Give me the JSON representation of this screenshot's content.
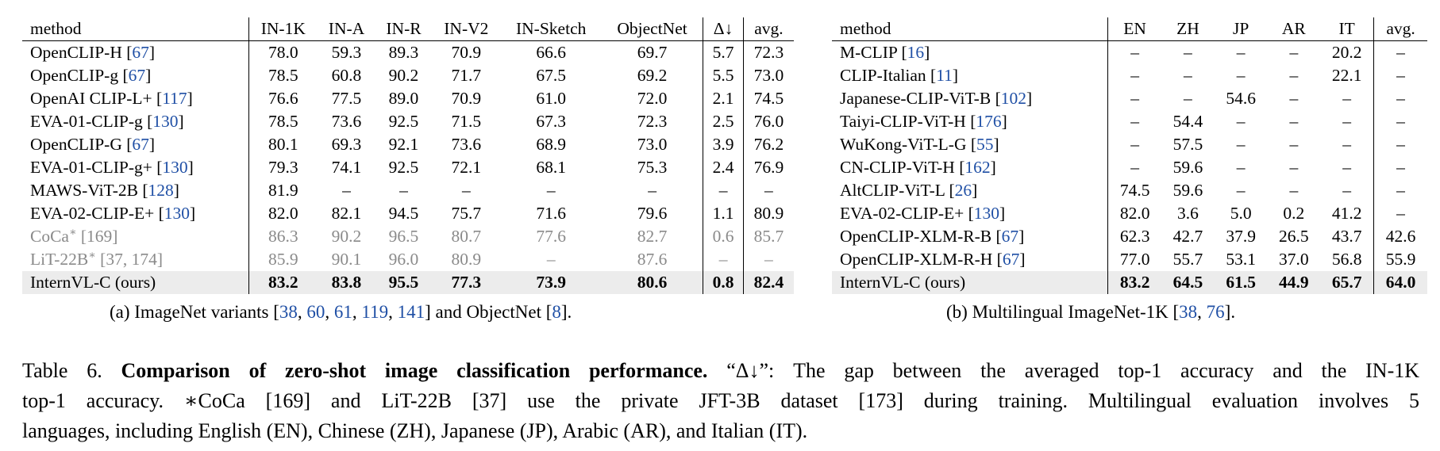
{
  "table_a": {
    "headers": [
      "method",
      "IN-1K",
      "IN-A",
      "IN-R",
      "IN-V2",
      "IN-Sketch",
      "ObjectNet",
      "Δ↓",
      "avg."
    ],
    "rows": [
      {
        "method": "OpenCLIP-H",
        "cite": "67",
        "values": [
          "78.0",
          "59.3",
          "89.3",
          "70.9",
          "66.6",
          "69.7",
          "5.7",
          "72.3"
        ]
      },
      {
        "method": "OpenCLIP-g",
        "cite": "67",
        "values": [
          "78.5",
          "60.8",
          "90.2",
          "71.7",
          "67.5",
          "69.2",
          "5.5",
          "73.0"
        ]
      },
      {
        "method": "OpenAI CLIP-L+",
        "cite": "117",
        "values": [
          "76.6",
          "77.5",
          "89.0",
          "70.9",
          "61.0",
          "72.0",
          "2.1",
          "74.5"
        ]
      },
      {
        "method": "EVA-01-CLIP-g",
        "cite": "130",
        "values": [
          "78.5",
          "73.6",
          "92.5",
          "71.5",
          "67.3",
          "72.3",
          "2.5",
          "76.0"
        ]
      },
      {
        "method": "OpenCLIP-G",
        "cite": "67",
        "values": [
          "80.1",
          "69.3",
          "92.1",
          "73.6",
          "68.9",
          "73.0",
          "3.9",
          "76.2"
        ]
      },
      {
        "method": "EVA-01-CLIP-g+",
        "cite": "130",
        "values": [
          "79.3",
          "74.1",
          "92.5",
          "72.1",
          "68.1",
          "75.3",
          "2.4",
          "76.9"
        ]
      },
      {
        "method": "MAWS-ViT-2B",
        "cite": "128",
        "values": [
          "81.9",
          "–",
          "–",
          "–",
          "–",
          "–",
          "–",
          "–"
        ]
      },
      {
        "method": "EVA-02-CLIP-E+",
        "cite": "130",
        "values": [
          "82.0",
          "82.1",
          "94.5",
          "75.7",
          "71.6",
          "79.6",
          "1.1",
          "80.9"
        ]
      },
      {
        "method": "CoCa",
        "sup": "∗",
        "cite": "169",
        "gray": true,
        "values": [
          "86.3",
          "90.2",
          "96.5",
          "80.7",
          "77.6",
          "82.7",
          "0.6",
          "85.7"
        ]
      },
      {
        "method": "LiT-22B",
        "sup": "∗",
        "cite": "37, 174",
        "gray": true,
        "values": [
          "85.9",
          "90.1",
          "96.0",
          "80.9",
          "–",
          "87.6",
          "–",
          "–"
        ]
      },
      {
        "method": "InternVL-C (ours)",
        "cite": "",
        "last": true,
        "values": [
          "83.2",
          "83.8",
          "95.5",
          "77.3",
          "73.9",
          "80.6",
          "0.8",
          "82.4"
        ]
      }
    ],
    "caption_prefix": "(a) ImageNet variants [",
    "caption_cites": [
      "38",
      "60",
      "61",
      "119",
      "141"
    ],
    "caption_mid": "] and ObjectNet [",
    "caption_cite_end": "8",
    "caption_suffix": "]."
  },
  "table_b": {
    "headers": [
      "method",
      "EN",
      "ZH",
      "JP",
      "AR",
      "IT",
      "avg."
    ],
    "rows": [
      {
        "method": "M-CLIP",
        "cite": "16",
        "values": [
          "–",
          "–",
          "–",
          "–",
          "20.2",
          "–"
        ]
      },
      {
        "method": "CLIP-Italian",
        "cite": "11",
        "values": [
          "–",
          "–",
          "–",
          "–",
          "22.1",
          "–"
        ]
      },
      {
        "method": "Japanese-CLIP-ViT-B",
        "cite": "102",
        "values": [
          "–",
          "–",
          "54.6",
          "–",
          "–",
          "–"
        ]
      },
      {
        "method": "Taiyi-CLIP-ViT-H",
        "cite": "176",
        "values": [
          "–",
          "54.4",
          "–",
          "–",
          "–",
          "–"
        ]
      },
      {
        "method": "WuKong-ViT-L-G",
        "cite": "55",
        "values": [
          "–",
          "57.5",
          "–",
          "–",
          "–",
          "–"
        ]
      },
      {
        "method": "CN-CLIP-ViT-H",
        "cite": "162",
        "values": [
          "–",
          "59.6",
          "–",
          "–",
          "–",
          "–"
        ]
      },
      {
        "method": "AltCLIP-ViT-L",
        "cite": "26",
        "values": [
          "74.5",
          "59.6",
          "–",
          "–",
          "–",
          "–"
        ]
      },
      {
        "method": "EVA-02-CLIP-E+",
        "cite": "130",
        "values": [
          "82.0",
          "3.6",
          "5.0",
          "0.2",
          "41.2",
          "–"
        ]
      },
      {
        "method": "OpenCLIP-XLM-R-B",
        "cite": "67",
        "values": [
          "62.3",
          "42.7",
          "37.9",
          "26.5",
          "43.7",
          "42.6"
        ]
      },
      {
        "method": "OpenCLIP-XLM-R-H",
        "cite": "67",
        "values": [
          "77.0",
          "55.7",
          "53.1",
          "37.0",
          "56.8",
          "55.9"
        ]
      },
      {
        "method": "InternVL-C (ours)",
        "cite": "",
        "last": true,
        "values": [
          "83.2",
          "64.5",
          "61.5",
          "44.9",
          "65.7",
          "64.0"
        ]
      }
    ],
    "caption_prefix": "(b) Multilingual ImageNet-1K [",
    "caption_cites": [
      "38",
      "76"
    ],
    "caption_suffix": "]."
  },
  "caption": {
    "label": "Table 6.",
    "bold": "Comparison of zero-shot image classification performance.",
    "line1_rest": "“Δ↓”: The gap between the averaged top-1 accuracy and the IN-1K",
    "line2": "top-1 accuracy. ∗CoCa [169] and LiT-22B [37] use the private JFT-3B dataset [173] during training. Multilingual evaluation involves 5",
    "line3": "languages, including English (EN), Chinese (ZH), Japanese (JP), Arabic (AR), and Italian (IT)."
  }
}
